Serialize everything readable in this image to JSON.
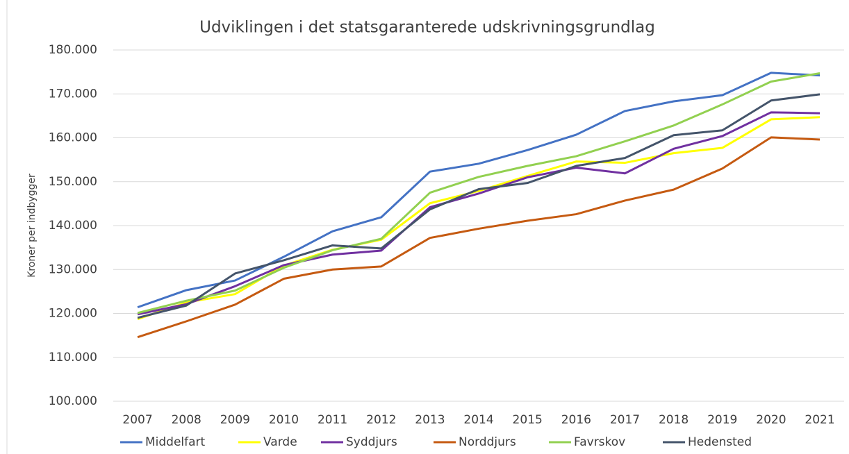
{
  "chart_data": {
    "type": "line",
    "title": "Udviklingen i det statsgaranterede udskrivningsgrundlag",
    "y_label": "Kroner per indbygger",
    "categories": [
      "2007",
      "2008",
      "2009",
      "2010",
      "2011",
      "2012",
      "2013",
      "2014",
      "2015",
      "2016",
      "2017",
      "2018",
      "2019",
      "2020",
      "2021"
    ],
    "series": [
      {
        "name": "Middelfart",
        "color": "#4472c4",
        "values": [
          121400,
          125300,
          127500,
          132900,
          138700,
          141900,
          152300,
          154100,
          157200,
          160700,
          166100,
          168300,
          169700,
          174800,
          174200
        ]
      },
      {
        "name": "Varde",
        "color": "#ffff00",
        "values": [
          118700,
          122500,
          124400,
          130900,
          134500,
          136800,
          145100,
          147900,
          151300,
          154600,
          154300,
          156500,
          157700,
          164200,
          164700
        ]
      },
      {
        "name": "Syddjurs",
        "color": "#7030a0",
        "values": [
          119800,
          122100,
          126200,
          131000,
          133400,
          134300,
          144200,
          147300,
          151000,
          153200,
          151900,
          157500,
          160400,
          165800,
          165600
        ]
      },
      {
        "name": "Norddjurs",
        "color": "#c55a11",
        "values": [
          114600,
          118200,
          122000,
          127900,
          130000,
          130700,
          137200,
          139300,
          141100,
          142600,
          145700,
          148200,
          153000,
          160100,
          159600
        ]
      },
      {
        "name": "Favrskov",
        "color": "#92d050",
        "values": [
          120100,
          122900,
          125200,
          130400,
          134400,
          137000,
          147500,
          151100,
          153600,
          155800,
          159200,
          162800,
          167600,
          172800,
          174700
        ]
      },
      {
        "name": "Hedensted",
        "color": "#44546a",
        "values": [
          119000,
          121800,
          129100,
          132100,
          135500,
          134800,
          143700,
          148300,
          149700,
          153600,
          155400,
          160600,
          161700,
          168500,
          169900
        ]
      }
    ],
    "ylim": [
      100000,
      180000
    ],
    "yticks": [
      {
        "value": 100000,
        "label": "100.000"
      },
      {
        "value": 110000,
        "label": "110.000"
      },
      {
        "value": 120000,
        "label": "120.000"
      },
      {
        "value": 130000,
        "label": "130.000"
      },
      {
        "value": 140000,
        "label": "140.000"
      },
      {
        "value": 150000,
        "label": "150.000"
      },
      {
        "value": 160000,
        "label": "160.000"
      },
      {
        "value": 170000,
        "label": "170.000"
      },
      {
        "value": 180000,
        "label": "180.000"
      }
    ],
    "grid": true,
    "legend": "bottom"
  }
}
